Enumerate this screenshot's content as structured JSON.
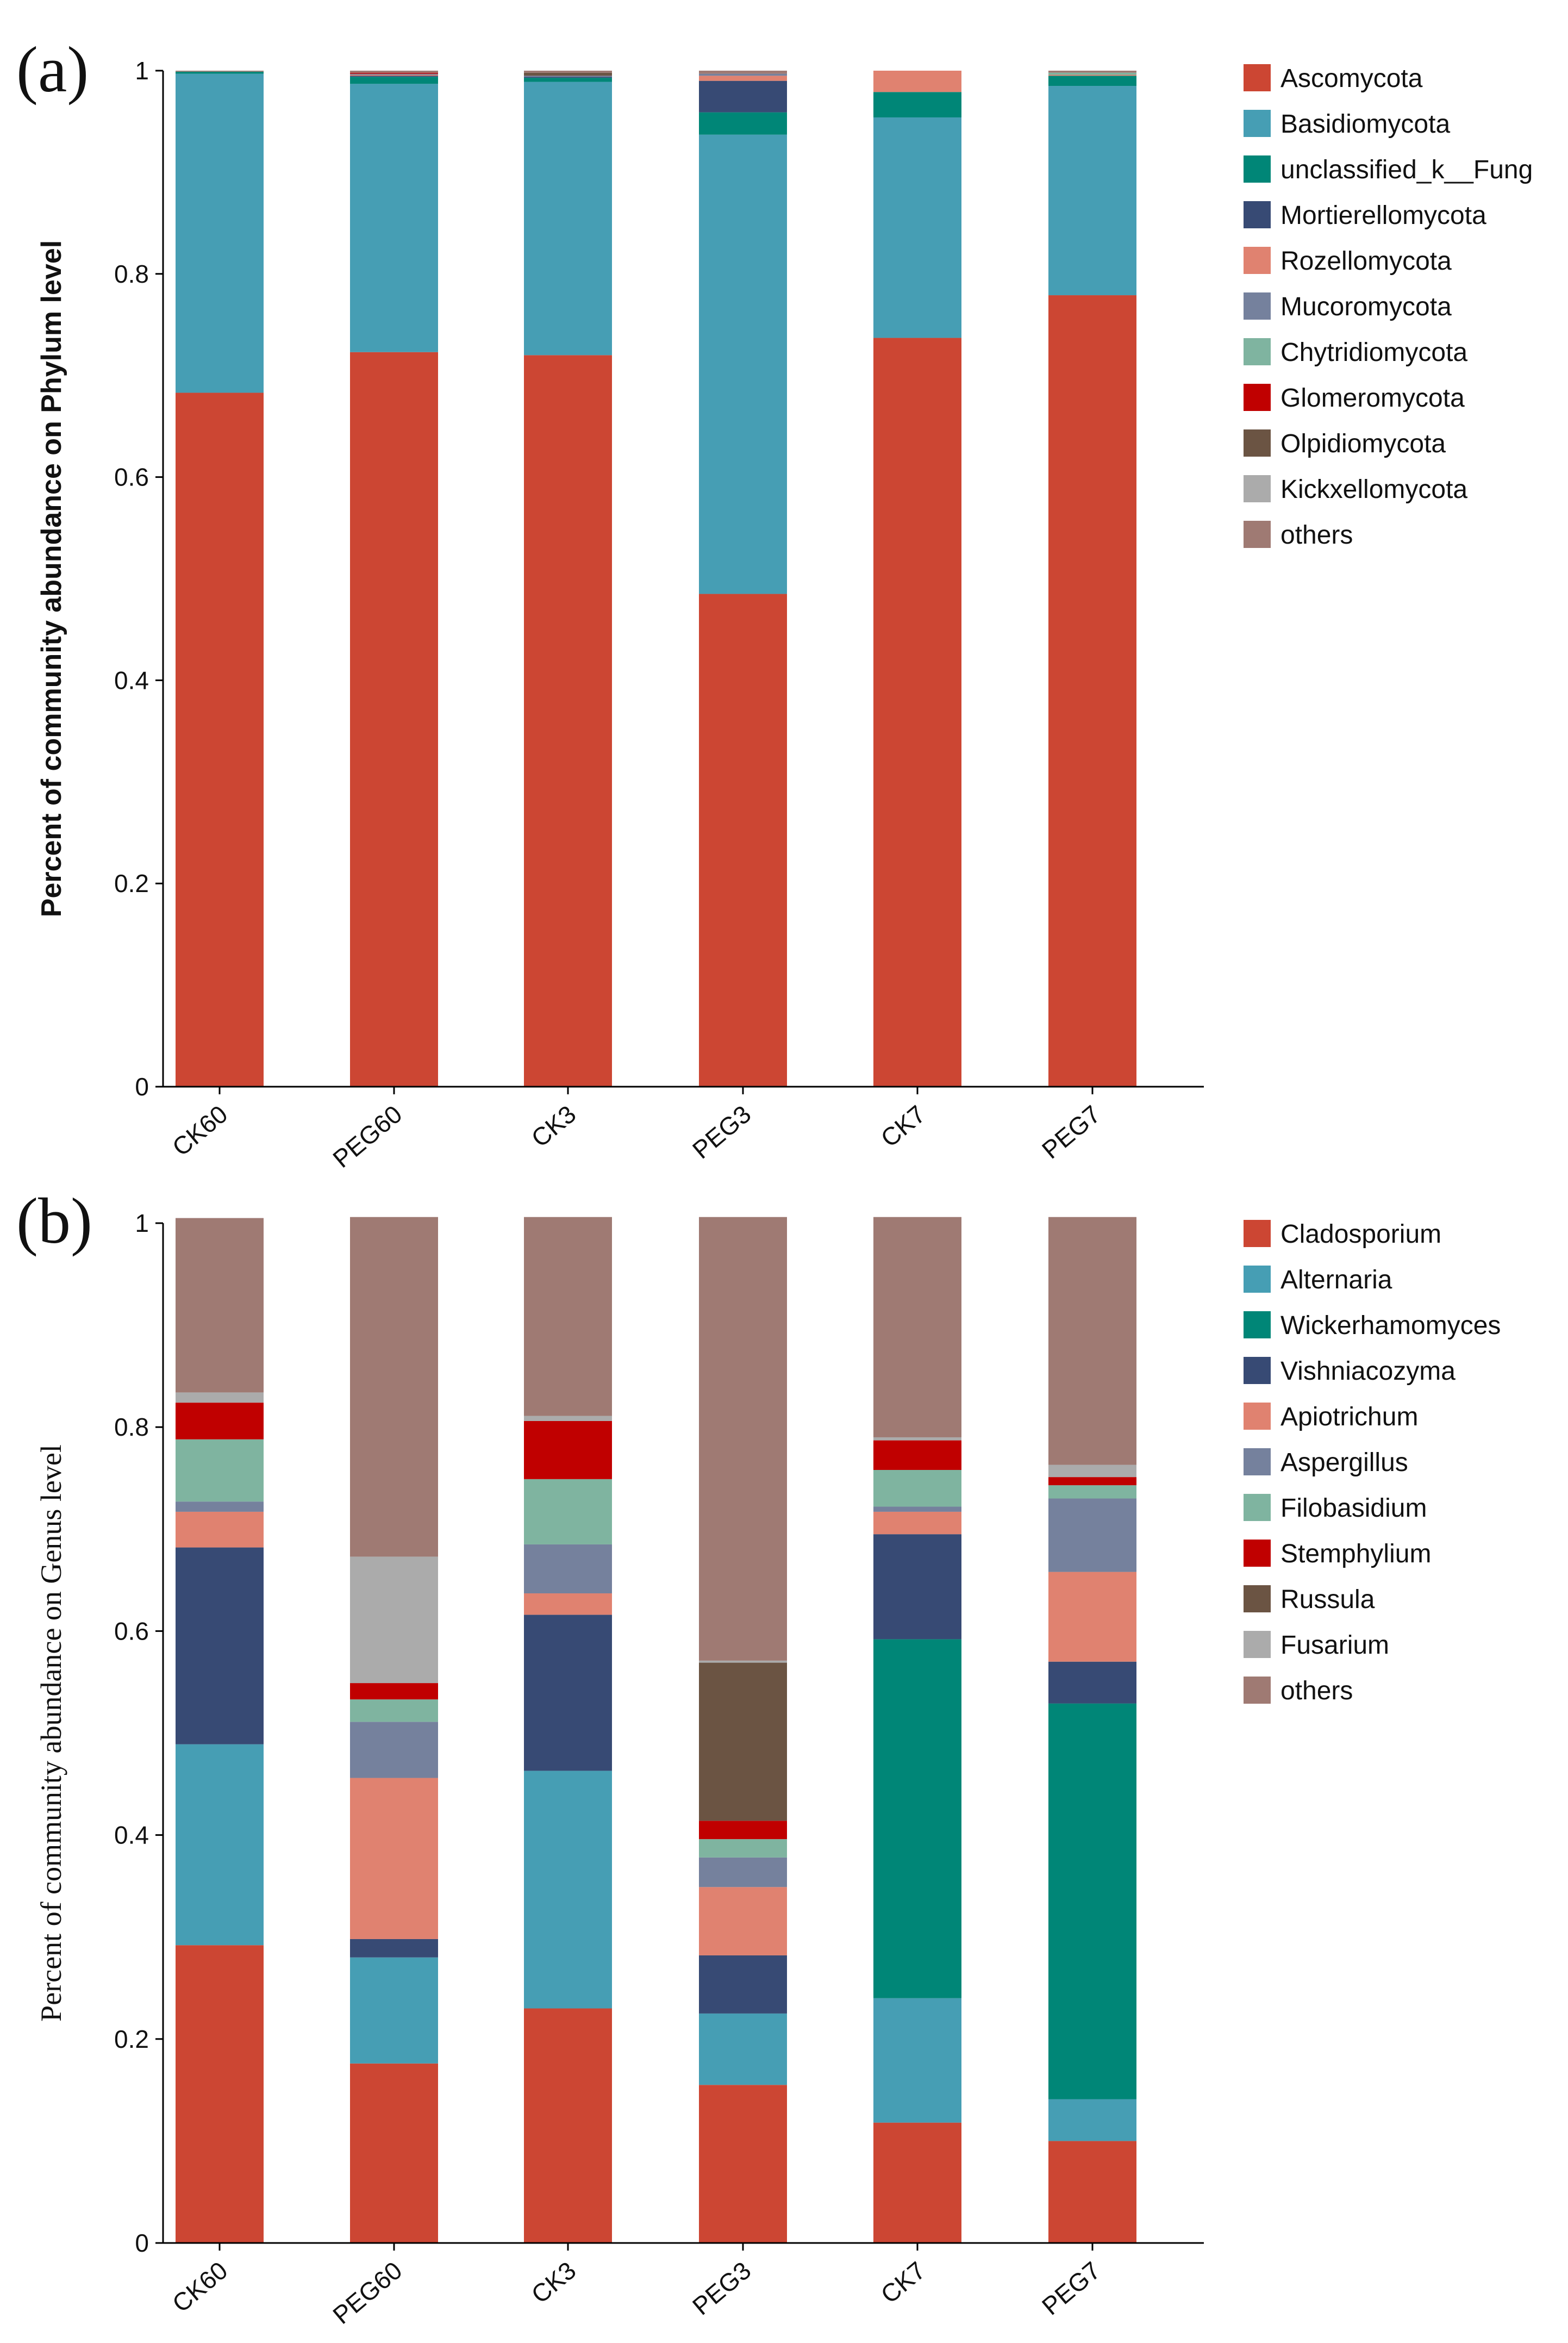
{
  "chart_data": [
    {
      "type": "bar",
      "stacked": true,
      "panel_label": "(a)",
      "ylabel": "Percent of community abundance on Phylum level",
      "xlabel": "",
      "ylim": [
        0,
        1
      ],
      "yticks": [
        "0",
        "0.2",
        "0.4",
        "0.6",
        "0.8",
        "1"
      ],
      "categories": [
        "CK60",
        "PEG60",
        "CK3",
        "PEG3",
        "CK7",
        "PEG7"
      ],
      "legend_position": "right",
      "series": [
        {
          "name": "Ascomycota",
          "color": "#cc4633",
          "values": [
            0.683,
            0.723,
            0.72,
            0.485,
            0.737,
            0.779
          ]
        },
        {
          "name": "Basidiomycota",
          "color": "#469eb4",
          "values": [
            0.314,
            0.264,
            0.269,
            0.452,
            0.217,
            0.206
          ]
        },
        {
          "name": "unclassified_k__Fung",
          "color": "#008677",
          "values": [
            0.002,
            0.007,
            0.004,
            0.022,
            0.025,
            0.01
          ]
        },
        {
          "name": "Mortierellomycota",
          "color": "#374a74",
          "values": [
            0.0,
            0.001,
            0.001,
            0.031,
            0.0,
            0.0
          ]
        },
        {
          "name": "Rozellomycota",
          "color": "#e08270",
          "values": [
            0.0,
            0.001,
            0.0,
            0.005,
            0.021,
            0.001
          ]
        },
        {
          "name": "Mucoromycota",
          "color": "#75819d",
          "values": [
            0.0,
            0.001,
            0.001,
            0.002,
            0.0,
            0.0
          ]
        },
        {
          "name": "Chytridiomycota",
          "color": "#7fb4a0",
          "values": [
            0.0,
            0.0,
            0.0,
            0.0,
            0.0,
            0.002
          ]
        },
        {
          "name": "Glomeromycota",
          "color": "#c00000",
          "values": [
            0.0,
            0.001,
            0.0,
            0.0,
            0.0,
            0.0
          ]
        },
        {
          "name": "Olpidiomycota",
          "color": "#6b5443",
          "values": [
            0.0,
            0.0,
            0.003,
            0.0,
            0.0,
            0.0
          ]
        },
        {
          "name": "Kickxellomycota",
          "color": "#ababab",
          "values": [
            0.0,
            0.0,
            0.0,
            0.0,
            0.0,
            0.0
          ]
        },
        {
          "name": "others",
          "color": "#9f7a73",
          "values": [
            0.001,
            0.002,
            0.002,
            0.003,
            0.0,
            0.002
          ]
        }
      ]
    },
    {
      "type": "bar",
      "stacked": true,
      "panel_label": "(b)",
      "ylabel": "Percent of community abundance on Genus level",
      "xlabel": "",
      "ylim": [
        0,
        1
      ],
      "yticks": [
        "0",
        "0.2",
        "0.4",
        "0.6",
        "0.8",
        "1"
      ],
      "categories": [
        "CK60",
        "PEG60",
        "CK3",
        "PEG3",
        "CK7",
        "PEG7"
      ],
      "legend_position": "right",
      "series": [
        {
          "name": "Cladosporium",
          "color": "#cc4633",
          "values": [
            0.292,
            0.176,
            0.23,
            0.155,
            0.118,
            0.1
          ]
        },
        {
          "name": "Alternaria",
          "color": "#469eb4",
          "values": [
            0.197,
            0.104,
            0.233,
            0.07,
            0.122,
            0.041
          ]
        },
        {
          "name": "Wickerhamomyces",
          "color": "#008677",
          "values": [
            0.0,
            0.0,
            0.0,
            0.0,
            0.352,
            0.388
          ]
        },
        {
          "name": "Vishniacozyma",
          "color": "#374a74",
          "values": [
            0.193,
            0.018,
            0.153,
            0.057,
            0.103,
            0.041
          ]
        },
        {
          "name": "Apiotrichum",
          "color": "#e08270",
          "values": [
            0.035,
            0.158,
            0.021,
            0.067,
            0.022,
            0.088
          ]
        },
        {
          "name": "Aspergillus",
          "color": "#75819d",
          "values": [
            0.01,
            0.055,
            0.048,
            0.029,
            0.005,
            0.072
          ]
        },
        {
          "name": "Filobasidium",
          "color": "#7fb4a0",
          "values": [
            0.061,
            0.022,
            0.064,
            0.018,
            0.036,
            0.013
          ]
        },
        {
          "name": "Stemphylium",
          "color": "#c00000",
          "values": [
            0.036,
            0.016,
            0.057,
            0.018,
            0.029,
            0.008
          ]
        },
        {
          "name": "Russula",
          "color": "#6b5443",
          "values": [
            0.0,
            0.0,
            0.0,
            0.155,
            0.0,
            0.0
          ]
        },
        {
          "name": "Fusarium",
          "color": "#ababab",
          "values": [
            0.01,
            0.124,
            0.005,
            0.002,
            0.003,
            0.012
          ]
        },
        {
          "name": "others",
          "color": "#9f7a73",
          "values": [
            0.171,
            0.333,
            0.195,
            0.435,
            0.216,
            0.243
          ]
        }
      ]
    }
  ]
}
